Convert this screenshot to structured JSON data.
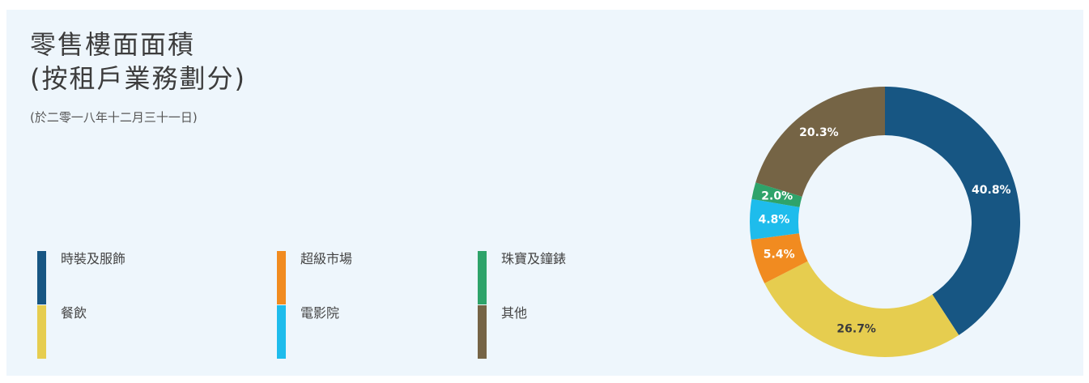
{
  "title_line1": "零售樓面面積",
  "title_line2": "(按租戶業務劃分)",
  "subtitle": "(於二零一八年十二月三十一日)",
  "chart_data": {
    "type": "pie",
    "categories": [
      "時裝及服飾",
      "餐飲",
      "超級市場",
      "電影院",
      "珠寶及鐘錶",
      "其他"
    ],
    "values": [
      40.8,
      26.7,
      5.4,
      4.8,
      2.0,
      20.3
    ],
    "labels": [
      "40.8%",
      "26.7%",
      "5.4%",
      "4.8%",
      "2.0%",
      "20.3%"
    ],
    "colors": [
      "#175683",
      "#e6cd4f",
      "#f18b20",
      "#1ebcec",
      "#2ea36a",
      "#756445"
    ],
    "label_colors": [
      "#ffffff",
      "#3c3c3c",
      "#ffffff",
      "#ffffff",
      "#ffffff",
      "#ffffff"
    ],
    "donut": true,
    "legend_position": "bottom-left"
  },
  "legend": [
    {
      "label": "時裝及服飾",
      "color": "#175683"
    },
    {
      "label": "超級市場",
      "color": "#f18b20"
    },
    {
      "label": "珠寶及鐘錶",
      "color": "#2ea36a"
    },
    {
      "label": "餐飲",
      "color": "#e6cd4f"
    },
    {
      "label": "電影院",
      "color": "#1ebcec"
    },
    {
      "label": "其他",
      "color": "#756445"
    }
  ]
}
